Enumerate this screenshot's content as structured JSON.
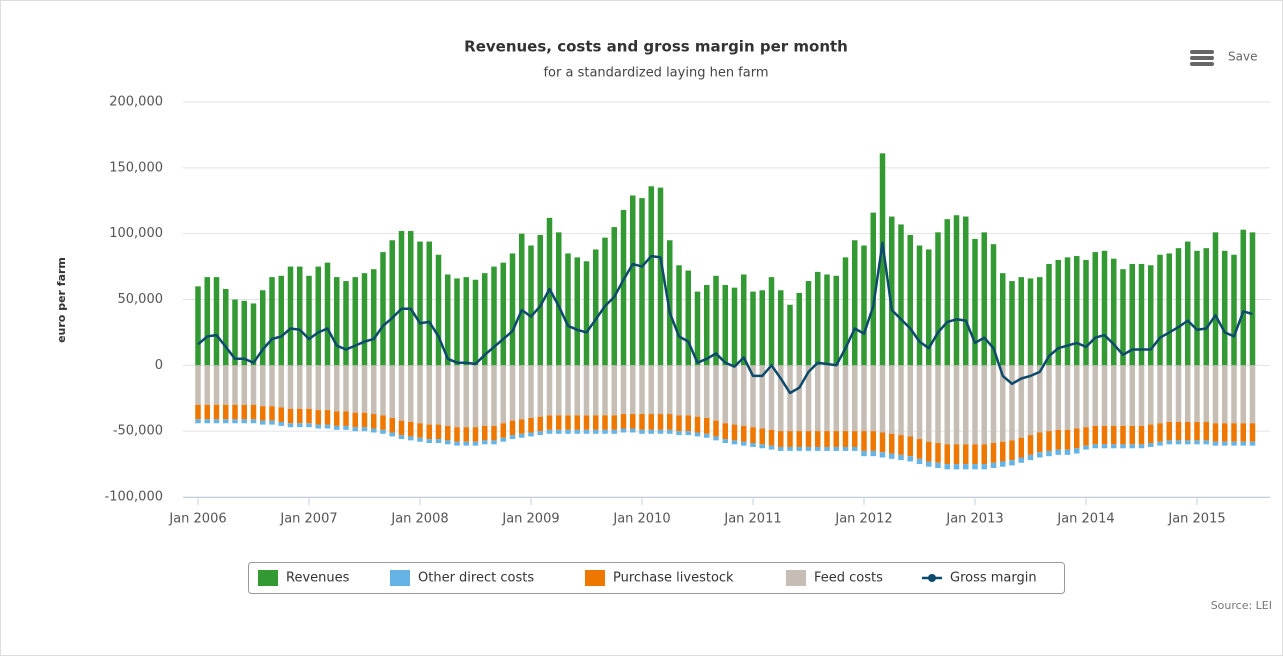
{
  "chart_data": {
    "type": "stacked-bar-line",
    "title": "Revenues, costs and gross margin per month",
    "subtitle": "for a standardized laying hen farm",
    "y_label": "euro per farm",
    "source": "Source: LEI",
    "save_label": "Save",
    "categories": [
      "Jan 2006",
      null,
      null,
      null,
      null,
      null,
      null,
      null,
      null,
      null,
      null,
      null,
      "Jan 2007",
      null,
      null,
      null,
      null,
      null,
      null,
      null,
      null,
      null,
      null,
      null,
      "Jan 2008",
      null,
      null,
      null,
      null,
      null,
      null,
      null,
      null,
      null,
      null,
      null,
      "Jan 2009",
      null,
      null,
      null,
      null,
      null,
      null,
      null,
      null,
      null,
      null,
      null,
      "Jan 2010",
      null,
      null,
      null,
      null,
      null,
      null,
      null,
      null,
      null,
      null,
      null,
      "Jan 2011",
      null,
      null,
      null,
      null,
      null,
      null,
      null,
      null,
      null,
      null,
      null,
      "Jan 2012",
      null,
      null,
      null,
      null,
      null,
      null,
      null,
      null,
      null,
      null,
      null,
      "Jan 2013",
      null,
      null,
      null,
      null,
      null,
      null,
      null,
      null,
      null,
      null,
      null,
      "Jan 2014",
      null,
      null,
      null,
      null,
      null,
      null,
      null,
      null,
      null,
      null,
      null,
      "Jan 2015",
      null,
      null,
      null,
      null,
      null,
      null
    ],
    "ylim": [
      -100000,
      200000
    ],
    "yticks": [
      {
        "value": -100000,
        "label": "-100,000"
      },
      {
        "value": -50000,
        "label": "-50,000"
      },
      0,
      {
        "value": 50000,
        "label": "50,000"
      },
      {
        "value": 100000,
        "label": "100,000"
      },
      {
        "value": 150000,
        "label": "150,000"
      },
      {
        "value": 200000,
        "label": "200,000"
      }
    ],
    "grid": true,
    "legend": "bottom",
    "series": [
      {
        "name": "Revenues",
        "color": "#339933",
        "kind": "bar",
        "values": [
          60000,
          67000,
          67000,
          58000,
          50000,
          49000,
          47000,
          57000,
          67000,
          68000,
          75000,
          75000,
          68000,
          75000,
          78000,
          67000,
          64000,
          67000,
          70000,
          73000,
          86000,
          95000,
          102000,
          102000,
          94000,
          94000,
          84000,
          69000,
          66000,
          67000,
          65000,
          70000,
          75000,
          78000,
          85000,
          100000,
          91000,
          99000,
          112000,
          101000,
          85000,
          82000,
          79000,
          88000,
          97000,
          105000,
          118000,
          129000,
          127000,
          136000,
          135000,
          95000,
          76000,
          72000,
          56000,
          61000,
          68000,
          61000,
          59000,
          69000,
          56000,
          57000,
          67000,
          57000,
          46000,
          55000,
          64000,
          71000,
          69000,
          68000,
          82000,
          95000,
          91000,
          116000,
          161000,
          113000,
          107000,
          99000,
          91000,
          88000,
          101000,
          111000,
          114000,
          113000,
          96000,
          101000,
          92000,
          70000,
          64000,
          67000,
          66000,
          67000,
          77000,
          80000,
          82000,
          83000,
          80000,
          86000,
          87000,
          81000,
          73000,
          77000,
          77000,
          76000,
          84000,
          85000,
          89000,
          94000,
          87000,
          89000,
          101000,
          87000,
          84000,
          103000,
          101000
        ]
      },
      {
        "name": "Other direct costs",
        "color": "#66b3e6",
        "kind": "bar",
        "values": [
          -3000,
          -3000,
          -3000,
          -3000,
          -3000,
          -3000,
          -3000,
          -3000,
          -3000,
          -3000,
          -3000,
          -3000,
          -3000,
          -3000,
          -3000,
          -3000,
          -3000,
          -3000,
          -3000,
          -3000,
          -3000,
          -3000,
          -3000,
          -3000,
          -3000,
          -3000,
          -3000,
          -3000,
          -3000,
          -3000,
          -3000,
          -3000,
          -3000,
          -3000,
          -3000,
          -3000,
          -3000,
          -3000,
          -3000,
          -3000,
          -3000,
          -3000,
          -3000,
          -3000,
          -3000,
          -3000,
          -3000,
          -3000,
          -3000,
          -3000,
          -3000,
          -3000,
          -3000,
          -3000,
          -3000,
          -3000,
          -3000,
          -3000,
          -3000,
          -3000,
          -3000,
          -3000,
          -3000,
          -3000,
          -3000,
          -3000,
          -3000,
          -3000,
          -3000,
          -3000,
          -3000,
          -3000,
          -4000,
          -4000,
          -4000,
          -4000,
          -4000,
          -4000,
          -4000,
          -4000,
          -4000,
          -4000,
          -4000,
          -4000,
          -4000,
          -4000,
          -4000,
          -4000,
          -4000,
          -4000,
          -4000,
          -4000,
          -4000,
          -4000,
          -4000,
          -4000,
          -3000,
          -3000,
          -3000,
          -3000,
          -3000,
          -3000,
          -3000,
          -3000,
          -3000,
          -3000,
          -3000,
          -3000,
          -3000,
          -3000,
          -3000,
          -3000,
          -3000,
          -3000,
          -3000
        ]
      },
      {
        "name": "Purchase livestock",
        "color": "#ee7700",
        "kind": "bar",
        "values": [
          -11000,
          -11000,
          -11000,
          -11000,
          -11000,
          -11000,
          -11000,
          -11000,
          -11000,
          -11000,
          -11000,
          -11000,
          -11000,
          -11000,
          -11000,
          -11000,
          -11000,
          -11000,
          -11000,
          -11000,
          -11000,
          -11000,
          -11000,
          -11000,
          -11000,
          -11000,
          -11000,
          -11000,
          -11000,
          -11000,
          -11000,
          -11000,
          -11000,
          -11000,
          -11000,
          -11000,
          -11000,
          -11000,
          -11000,
          -11000,
          -11000,
          -11000,
          -11000,
          -11000,
          -11000,
          -11000,
          -11000,
          -11000,
          -12000,
          -12000,
          -12000,
          -12000,
          -12000,
          -12000,
          -12000,
          -12000,
          -12000,
          -12000,
          -12000,
          -12000,
          -12000,
          -12000,
          -12000,
          -12000,
          -12000,
          -12000,
          -12000,
          -12000,
          -12000,
          -12000,
          -12000,
          -12000,
          -15000,
          -15000,
          -15000,
          -15000,
          -15000,
          -15000,
          -15000,
          -15000,
          -15000,
          -15000,
          -15000,
          -15000,
          -15000,
          -15000,
          -15000,
          -15000,
          -15000,
          -15000,
          -15000,
          -15000,
          -15000,
          -15000,
          -15000,
          -15000,
          -14000,
          -14000,
          -14000,
          -14000,
          -14000,
          -14000,
          -14000,
          -14000,
          -14000,
          -14000,
          -14000,
          -14000,
          -14000,
          -14000,
          -14000,
          -14000,
          -14000,
          -14000,
          -14000
        ]
      },
      {
        "name": "Feed costs",
        "color": "#c6beb5",
        "kind": "bar",
        "values": [
          -30000,
          -30000,
          -30000,
          -30000,
          -30000,
          -30000,
          -30000,
          -31000,
          -31000,
          -32000,
          -33000,
          -33000,
          -33000,
          -34000,
          -34000,
          -35000,
          -35000,
          -36000,
          -36000,
          -37000,
          -38000,
          -40000,
          -42000,
          -43000,
          -44000,
          -45000,
          -45000,
          -46000,
          -47000,
          -47000,
          -47000,
          -46000,
          -46000,
          -44000,
          -42000,
          -41000,
          -40000,
          -39000,
          -38000,
          -38000,
          -38000,
          -38000,
          -38000,
          -38000,
          -38000,
          -38000,
          -37000,
          -37000,
          -37000,
          -37000,
          -37000,
          -37000,
          -38000,
          -38000,
          -39000,
          -40000,
          -42000,
          -44000,
          -45000,
          -46000,
          -47000,
          -48000,
          -49000,
          -50000,
          -50000,
          -50000,
          -50000,
          -50000,
          -50000,
          -50000,
          -50000,
          -50000,
          -50000,
          -50000,
          -51000,
          -52000,
          -53000,
          -54000,
          -56000,
          -58000,
          -59000,
          -60000,
          -60000,
          -60000,
          -60000,
          -60000,
          -59000,
          -58000,
          -57000,
          -55000,
          -53000,
          -51000,
          -50000,
          -49000,
          -49000,
          -48000,
          -47000,
          -46000,
          -46000,
          -46000,
          -46000,
          -46000,
          -46000,
          -45000,
          -44000,
          -43000,
          -43000,
          -43000,
          -43000,
          -43000,
          -44000,
          -44000,
          -44000,
          -44000,
          -44000
        ]
      },
      {
        "name": "Gross margin",
        "color": "#0d4a6b",
        "kind": "line",
        "values": [
          16000,
          22000,
          23000,
          14000,
          5000,
          5000,
          2000,
          12000,
          20000,
          22000,
          28000,
          27000,
          20000,
          25000,
          28000,
          15000,
          12000,
          15000,
          18000,
          20000,
          30000,
          36000,
          43000,
          43000,
          32000,
          33000,
          22000,
          5000,
          2000,
          2000,
          1000,
          8000,
          14000,
          20000,
          26000,
          42000,
          37000,
          45000,
          58000,
          45000,
          30000,
          27000,
          25000,
          35000,
          45000,
          52000,
          65000,
          77000,
          75000,
          83000,
          82000,
          40000,
          22000,
          18000,
          2000,
          5000,
          9000,
          2000,
          -1000,
          6000,
          -8000,
          -8000,
          0,
          -10000,
          -21000,
          -17000,
          -5000,
          2000,
          1000,
          0,
          13000,
          28000,
          24000,
          45000,
          93000,
          42000,
          35000,
          28000,
          18000,
          13000,
          25000,
          33000,
          35000,
          34000,
          17000,
          21000,
          13000,
          -8000,
          -14000,
          -10000,
          -8000,
          -5000,
          7000,
          13000,
          15000,
          17000,
          14000,
          21000,
          23000,
          16000,
          8000,
          12000,
          12000,
          12000,
          21000,
          25000,
          29000,
          34000,
          27000,
          28000,
          38000,
          25000,
          22000,
          41000,
          39000
        ]
      }
    ]
  }
}
